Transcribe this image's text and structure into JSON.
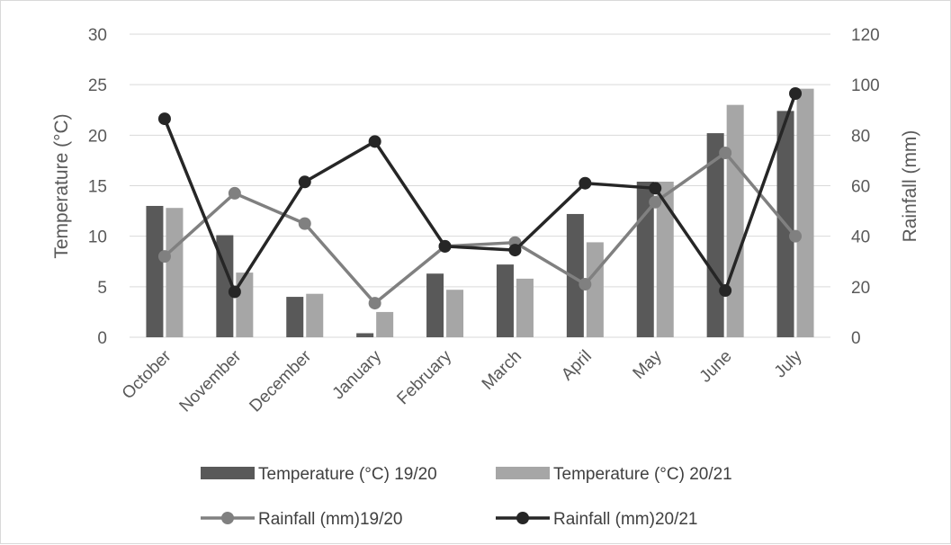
{
  "chart_data": {
    "type": "bar",
    "categories": [
      "October",
      "November",
      "December",
      "January",
      "February",
      "March",
      "April",
      "May",
      "June",
      "July"
    ],
    "left_axis": {
      "label": "Temperature (°C)",
      "range": [
        0,
        30
      ],
      "ticks": [
        0,
        5,
        10,
        15,
        20,
        25,
        30
      ]
    },
    "right_axis": {
      "label": "Rainfall (mm)",
      "range": [
        0,
        120
      ],
      "ticks": [
        0,
        20,
        40,
        60,
        80,
        100,
        120
      ]
    },
    "gridlines": true,
    "legend_position": "bottom",
    "bar_series": [
      {
        "name": "Temperature (°C) 19/20",
        "color": "#595959",
        "axis": "left",
        "values": [
          13.0,
          10.1,
          4.0,
          0.4,
          6.3,
          7.2,
          12.2,
          15.4,
          20.2,
          22.4
        ]
      },
      {
        "name": "Temperature (°C) 20/21",
        "color": "#a6a6a6",
        "axis": "left",
        "values": [
          12.8,
          6.4,
          4.3,
          2.5,
          4.7,
          5.8,
          9.4,
          15.4,
          23.0,
          24.6
        ]
      }
    ],
    "line_series": [
      {
        "name": "Rainfall (mm)19/20",
        "color": "#808080",
        "axis": "right",
        "values": [
          32,
          57,
          45,
          13.5,
          36,
          37.5,
          21,
          53.5,
          73,
          40
        ]
      },
      {
        "name": "Rainfall (mm)20/21",
        "color": "#262626",
        "axis": "right",
        "values": [
          86.5,
          18,
          61.5,
          77.5,
          36,
          34.5,
          61,
          59,
          18.5,
          96.5
        ]
      }
    ]
  }
}
